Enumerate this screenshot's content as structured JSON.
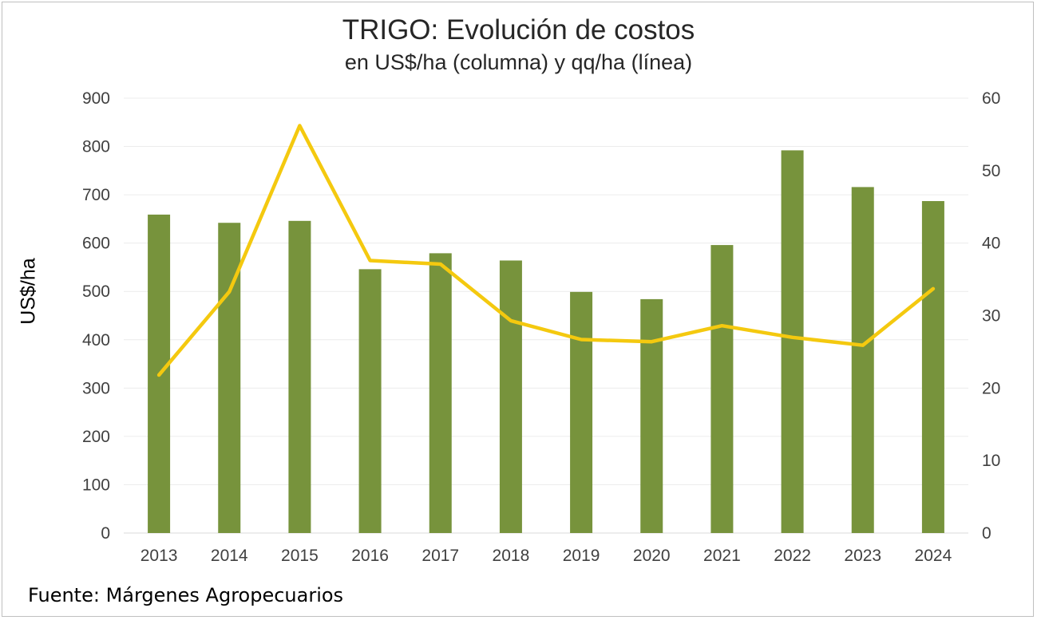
{
  "chart_data": {
    "type": "bar",
    "title": "TRIGO: Evolución de costos",
    "subtitle": "en US$/ha (columna) y qq/ha (línea)",
    "ylabel": "US$/ha",
    "categories": [
      "2013",
      "2014",
      "2015",
      "2016",
      "2017",
      "2018",
      "2019",
      "2020",
      "2021",
      "2022",
      "2023",
      "2024"
    ],
    "series": [
      {
        "type": "bar",
        "axis": "left",
        "color": "#77933c",
        "values": [
          659,
          642,
          646,
          546,
          579,
          564,
          499,
          484,
          596,
          792,
          716,
          687
        ]
      },
      {
        "type": "line",
        "axis": "right",
        "color": "#f4c90f",
        "values": [
          21.8,
          33.3,
          56.2,
          37.6,
          37.1,
          29.3,
          26.7,
          26.4,
          28.6,
          27.0,
          25.9,
          33.7
        ]
      }
    ],
    "ylim": [
      0,
      900
    ],
    "yticks": [
      "0",
      "100",
      "200",
      "300",
      "400",
      "500",
      "600",
      "700",
      "800",
      "900"
    ],
    "y2lim": [
      0,
      60
    ],
    "y2ticks": [
      "0",
      "10",
      "20",
      "30",
      "40",
      "50",
      "60"
    ],
    "grid": true,
    "legend": "none"
  },
  "source": "Fuente: Márgenes Agropecuarios"
}
